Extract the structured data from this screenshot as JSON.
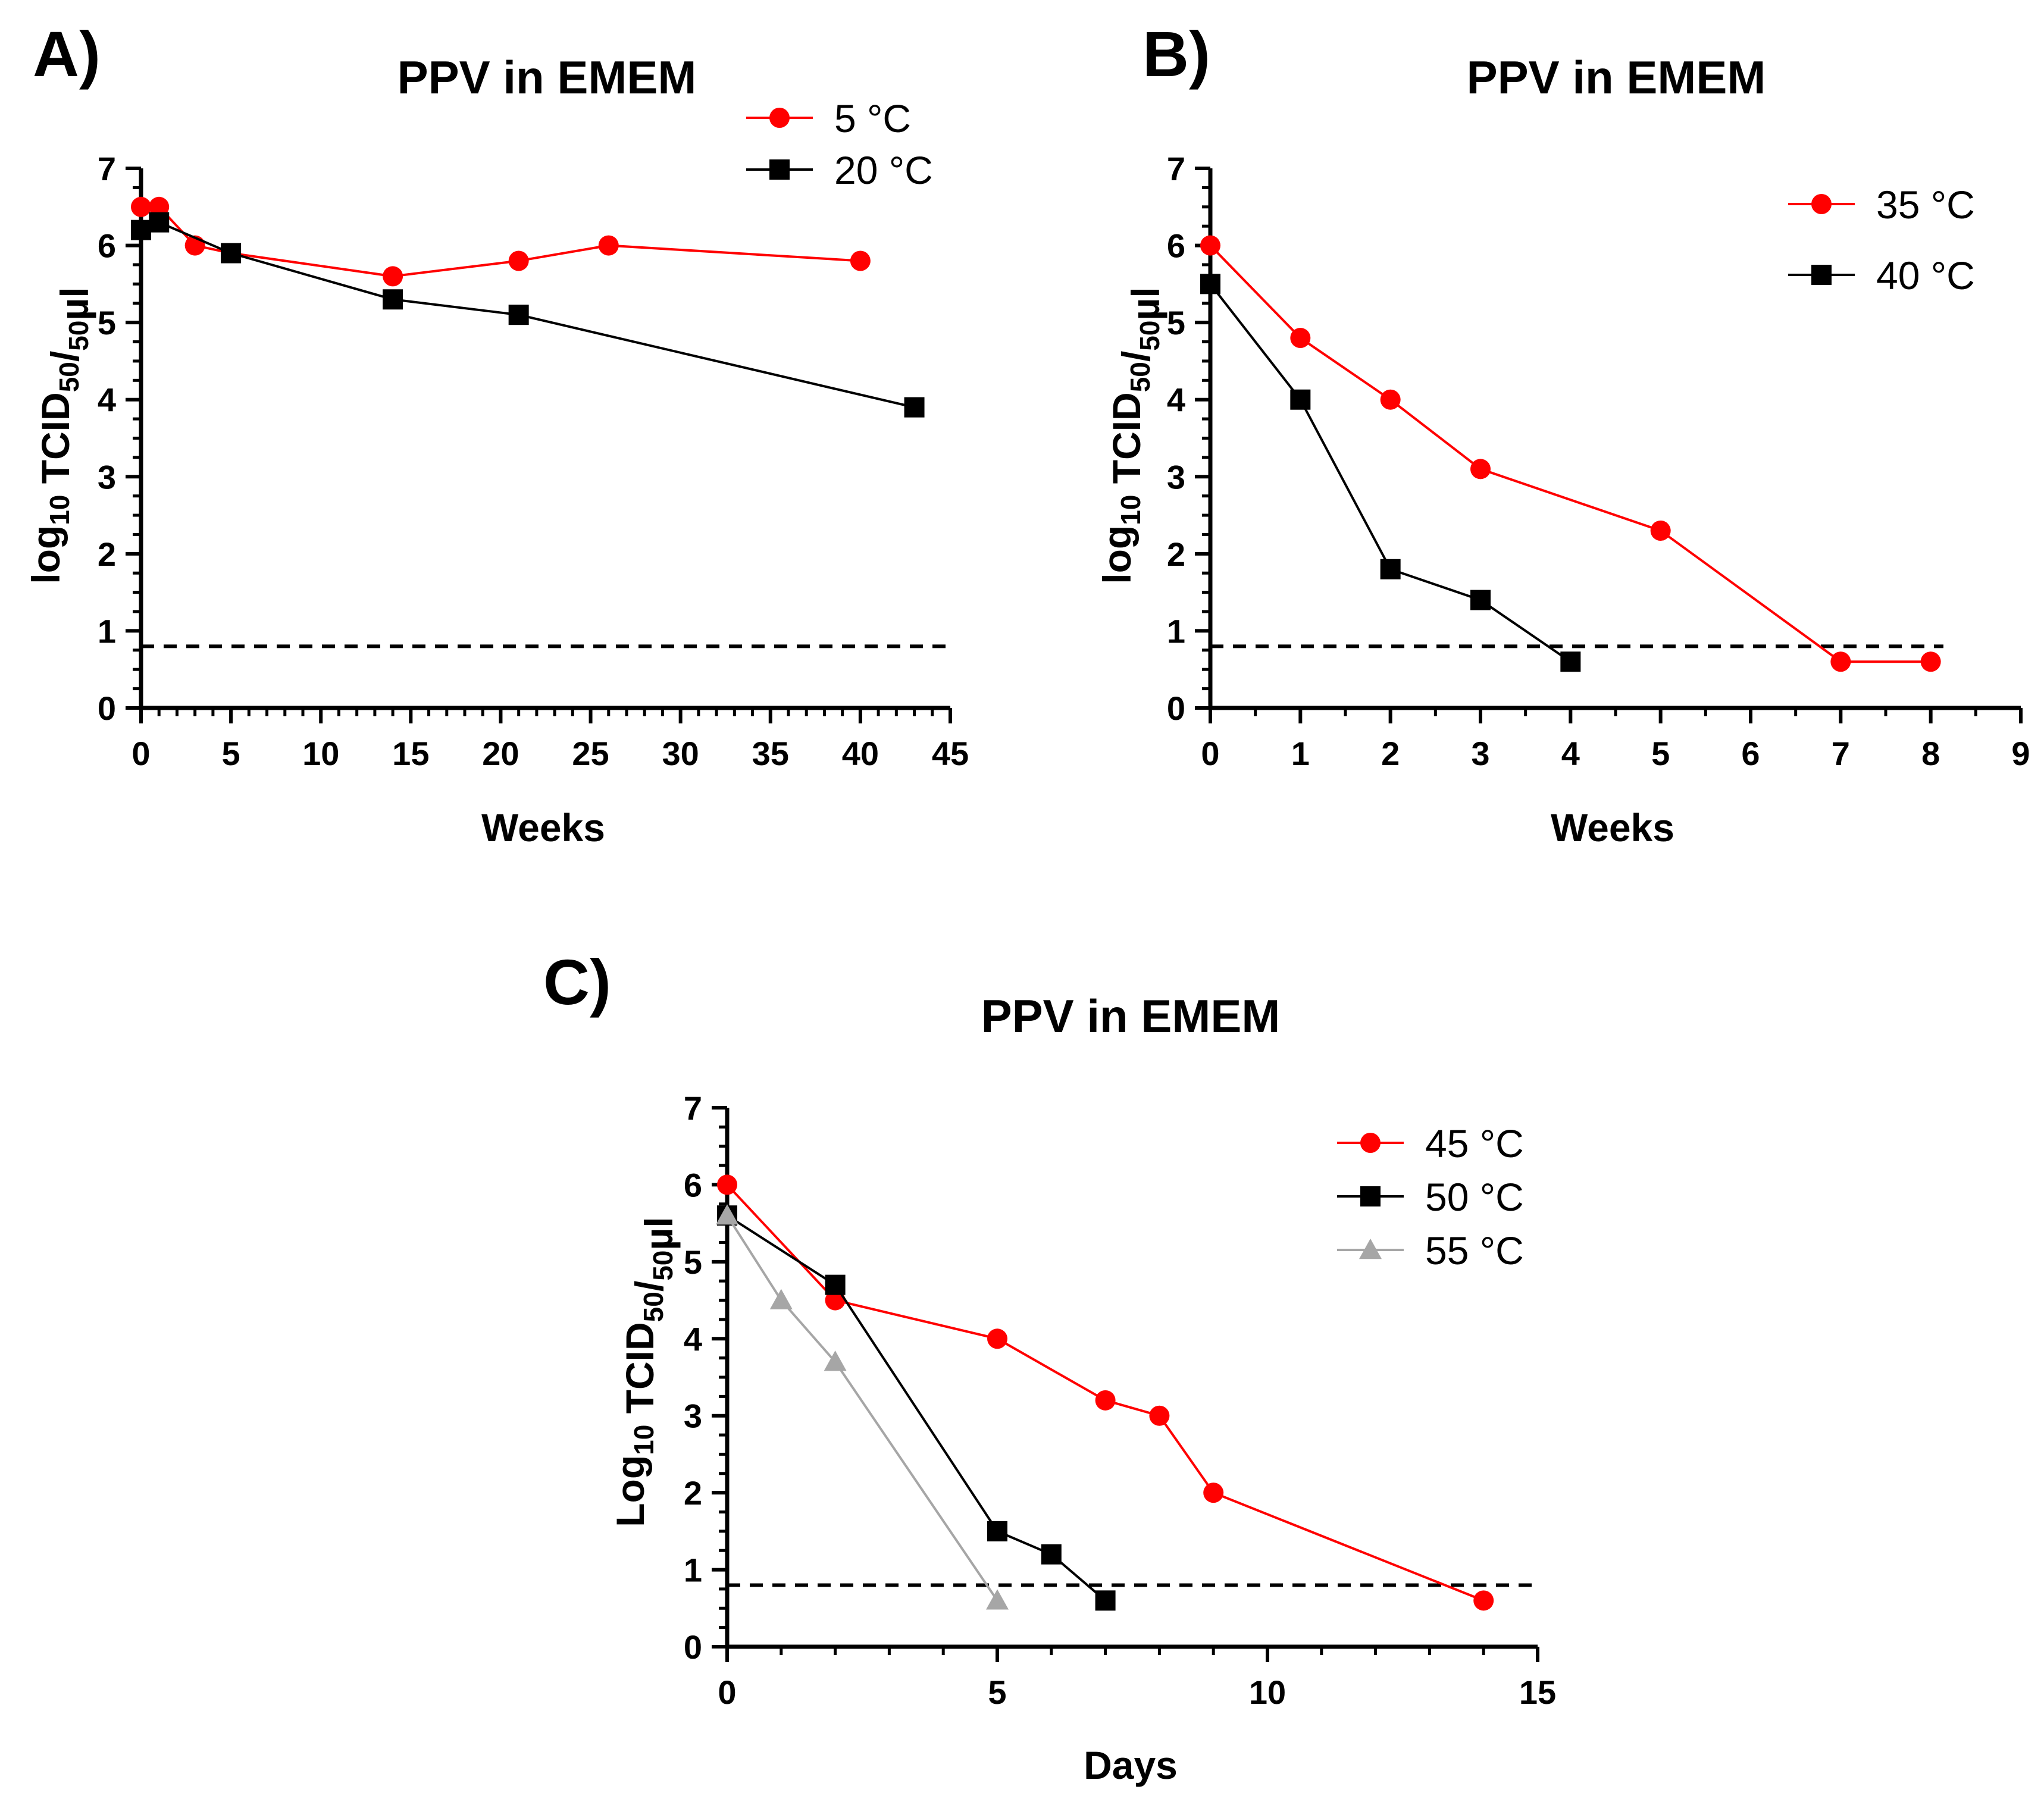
{
  "chart_data": [
    {
      "type": "line",
      "panel_label": "A)",
      "title": "PPV in EMEM",
      "xlabel": "Weeks",
      "ylabel": "log10 TCID50/50µl",
      "xlim": [
        0,
        45
      ],
      "ylim": [
        0,
        7
      ],
      "x_ticks": [
        0,
        5,
        10,
        15,
        20,
        25,
        30,
        35,
        40,
        45
      ],
      "y_ticks": [
        0,
        1,
        2,
        3,
        4,
        5,
        6,
        7
      ],
      "x_minor": 1,
      "y_minor": 0.25,
      "detection_limit": 0.8,
      "legend_position": "top-right",
      "series": [
        {
          "name": "5 °C",
          "color": "#ff0000",
          "marker": "circle",
          "x": [
            0,
            1,
            3,
            5,
            14,
            21,
            26,
            40
          ],
          "y": [
            6.5,
            6.5,
            6.0,
            5.9,
            5.6,
            5.8,
            6.0,
            5.8
          ]
        },
        {
          "name": "20 °C",
          "color": "#000000",
          "marker": "square",
          "x": [
            0,
            1,
            5,
            14,
            21,
            43
          ],
          "y": [
            6.2,
            6.3,
            5.9,
            5.3,
            5.1,
            3.9
          ]
        }
      ]
    },
    {
      "type": "line",
      "panel_label": "B)",
      "title": "PPV in EMEM",
      "xlabel": "Weeks",
      "ylabel": "log10 TCID50/50µl",
      "xlim": [
        0,
        9
      ],
      "ylim": [
        0,
        7
      ],
      "x_ticks": [
        0,
        1,
        2,
        3,
        4,
        5,
        6,
        7,
        8,
        9
      ],
      "y_ticks": [
        0,
        1,
        2,
        3,
        4,
        5,
        6,
        7
      ],
      "x_minor": 0.5,
      "y_minor": 0.25,
      "detection_limit": 0.8,
      "legend_position": "top-right",
      "series": [
        {
          "name": "35 °C",
          "color": "#ff0000",
          "marker": "circle",
          "x": [
            0,
            1,
            2,
            3,
            5,
            7,
            8
          ],
          "y": [
            6.0,
            4.8,
            4.0,
            3.1,
            2.3,
            0.6,
            0.6
          ]
        },
        {
          "name": "40 °C",
          "color": "#000000",
          "marker": "square",
          "x": [
            0,
            1,
            2,
            3,
            4
          ],
          "y": [
            5.5,
            4.0,
            1.8,
            1.4,
            0.6
          ]
        }
      ]
    },
    {
      "type": "line",
      "panel_label": "C)",
      "title": "PPV in EMEM",
      "xlabel": "Days",
      "ylabel": "Log10 TCID50/50µl",
      "xlim": [
        0,
        15
      ],
      "ylim": [
        0,
        7
      ],
      "x_ticks": [
        0,
        5,
        10,
        15
      ],
      "y_ticks": [
        0,
        1,
        2,
        3,
        4,
        5,
        6,
        7
      ],
      "x_minor": 1,
      "y_minor": 0.25,
      "detection_limit": 0.8,
      "legend_position": "top-right",
      "series": [
        {
          "name": "45 °C",
          "color": "#ff0000",
          "marker": "circle",
          "x": [
            0,
            2,
            5,
            7,
            8,
            9,
            14
          ],
          "y": [
            6.0,
            4.5,
            4.0,
            3.2,
            3.0,
            2.0,
            0.6
          ]
        },
        {
          "name": "50 °C",
          "color": "#000000",
          "marker": "square",
          "x": [
            0,
            2,
            5,
            6,
            7
          ],
          "y": [
            5.6,
            4.7,
            1.5,
            1.2,
            0.6
          ]
        },
        {
          "name": "55 °C",
          "color": "#a6a6a6",
          "marker": "triangle",
          "x": [
            0,
            1,
            2,
            5
          ],
          "y": [
            5.6,
            4.5,
            3.7,
            0.6
          ]
        }
      ]
    }
  ]
}
